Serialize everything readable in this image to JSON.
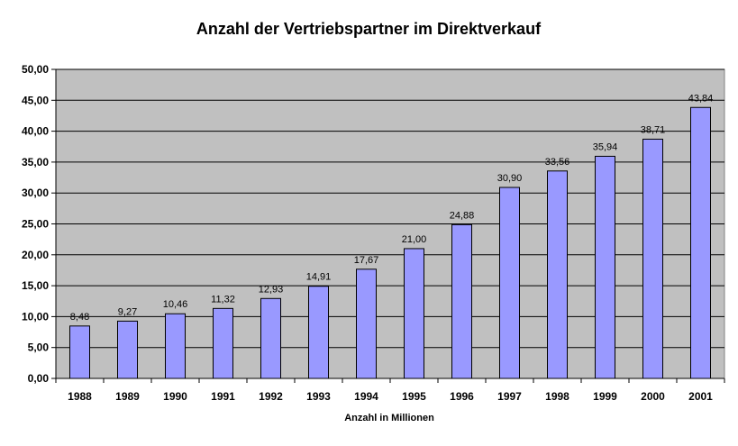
{
  "chart_data": {
    "type": "bar",
    "title": "Anzahl der Vertriebspartner im Direktverkauf",
    "xlabel": "Anzahl in Millionen",
    "ylabel": "",
    "ylim": [
      0,
      50
    ],
    "yticks": [
      0,
      5,
      10,
      15,
      20,
      25,
      30,
      35,
      40,
      45,
      50
    ],
    "ytick_labels": [
      "0,00",
      "5,00",
      "10,00",
      "15,00",
      "20,00",
      "25,00",
      "30,00",
      "35,00",
      "40,00",
      "45,00",
      "50,00"
    ],
    "categories": [
      "1988",
      "1989",
      "1990",
      "1991",
      "1992",
      "1993",
      "1994",
      "1995",
      "1996",
      "1997",
      "1998",
      "1999",
      "2000",
      "2001"
    ],
    "values": [
      8.48,
      9.27,
      10.46,
      11.32,
      12.93,
      14.91,
      17.67,
      21.0,
      24.88,
      30.9,
      33.56,
      35.94,
      38.71,
      43.84
    ],
    "value_labels": [
      "8,48",
      "9,27",
      "10,46",
      "11,32",
      "12,93",
      "14,91",
      "17,67",
      "21,00",
      "24,88",
      "30,90",
      "33,56",
      "35,94",
      "38,71",
      "43,84"
    ],
    "grid": true,
    "colors": {
      "bar": "#9999ff",
      "bar_edge": "#000000",
      "plot_bg": "#c0c0c0",
      "grid": "#000000"
    }
  }
}
